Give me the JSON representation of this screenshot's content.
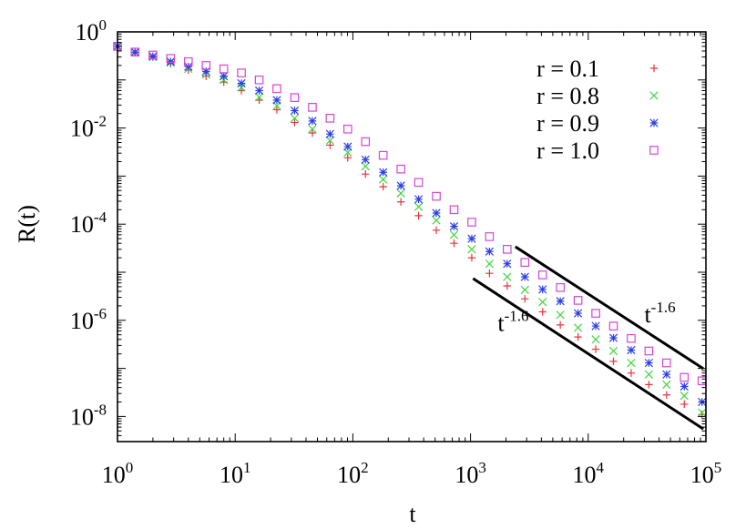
{
  "chart_data": {
    "type": "scatter",
    "xscale": "log",
    "yscale": "log",
    "xlim": [
      1,
      100000
    ],
    "ylim": [
      3e-09,
      1
    ],
    "xlabel": "t",
    "ylabel": "R(t)",
    "grid": false,
    "legend_position": "top-right",
    "x_ticks": [
      {
        "value": 1,
        "base": "10",
        "exp": "0"
      },
      {
        "value": 10,
        "base": "10",
        "exp": "1"
      },
      {
        "value": 100,
        "base": "10",
        "exp": "2"
      },
      {
        "value": 1000,
        "base": "10",
        "exp": "3"
      },
      {
        "value": 10000,
        "base": "10",
        "exp": "4"
      },
      {
        "value": 100000,
        "base": "10",
        "exp": "5"
      }
    ],
    "y_ticks": [
      {
        "value": 1,
        "base": "10",
        "exp": "0"
      },
      {
        "value": 0.01,
        "base": "10",
        "exp": "-2"
      },
      {
        "value": 0.0001,
        "base": "10",
        "exp": "-4"
      },
      {
        "value": 1e-06,
        "base": "10",
        "exp": "-6"
      },
      {
        "value": 1e-08,
        "base": "10",
        "exp": "-8"
      }
    ],
    "x": [
      1,
      1.41,
      2,
      2.83,
      4,
      5.66,
      8,
      11.3,
      16,
      22.6,
      32,
      45.3,
      64,
      90.5,
      128,
      181,
      256,
      362,
      512,
      724,
      1024,
      1448,
      2048,
      2896,
      4096,
      5793,
      8192,
      11585,
      16384,
      23170,
      32768,
      46341,
      65536,
      92682
    ],
    "series": [
      {
        "name": "r = 0.1",
        "marker": "plus",
        "color": "#e8343a",
        "values": [
          0.5,
          0.37,
          0.3,
          0.22,
          0.16,
          0.12,
          0.09,
          0.06,
          0.038,
          0.024,
          0.013,
          0.0079,
          0.0044,
          0.0024,
          0.0011,
          0.0006,
          0.00029,
          0.00015,
          7.5e-05,
          4e-05,
          2e-05,
          9.5e-06,
          5.2e-06,
          2.8e-06,
          1.5e-06,
          8e-07,
          4.5e-07,
          2.5e-07,
          1.4e-07,
          8e-08,
          4.6e-08,
          2.8e-08,
          1.8e-08,
          1.1e-08
        ]
      },
      {
        "name": "r = 0.8",
        "marker": "cross",
        "color": "#3dd63d",
        "values": [
          0.5,
          0.37,
          0.3,
          0.23,
          0.17,
          0.13,
          0.1,
          0.07,
          0.044,
          0.029,
          0.016,
          0.0095,
          0.0055,
          0.0031,
          0.0016,
          0.00085,
          0.00044,
          0.00023,
          0.00012,
          6e-05,
          3e-05,
          1.5e-05,
          8e-06,
          4.3e-06,
          2.4e-06,
          1.3e-06,
          7e-07,
          4e-07,
          2.3e-07,
          1.3e-07,
          7.5e-08,
          4.6e-08,
          2.7e-08,
          1.2e-08
        ]
      },
      {
        "name": "r = 0.9",
        "marker": "star",
        "color": "#2c3ee8",
        "values": [
          0.5,
          0.38,
          0.31,
          0.24,
          0.19,
          0.15,
          0.12,
          0.085,
          0.06,
          0.038,
          0.023,
          0.014,
          0.0075,
          0.0041,
          0.0022,
          0.0012,
          0.00063,
          0.00033,
          0.00017,
          9e-05,
          5e-05,
          2.7e-05,
          1.5e-05,
          8e-06,
          4.4e-06,
          2.5e-06,
          1.4e-06,
          7.6e-07,
          4.3e-07,
          2.4e-07,
          1.3e-07,
          7.5e-08,
          4.2e-08,
          2e-08
        ]
      },
      {
        "name": "r = 1.0",
        "marker": "square",
        "color": "#d545d5",
        "values": [
          0.5,
          0.38,
          0.33,
          0.28,
          0.24,
          0.2,
          0.17,
          0.14,
          0.1,
          0.066,
          0.043,
          0.027,
          0.016,
          0.0095,
          0.0052,
          0.0027,
          0.0014,
          0.00074,
          0.00038,
          0.0002,
          0.00011,
          5.5e-05,
          3e-05,
          1.6e-05,
          8.8e-06,
          4.8e-06,
          2.6e-06,
          1.4e-06,
          7.6e-07,
          4.2e-07,
          2.3e-07,
          1.3e-07,
          6.5e-08,
          5.5e-08
        ]
      }
    ],
    "reference_lines": [
      {
        "label_base": "t",
        "label_exp": "-1.6",
        "x": [
          2400,
          95000
        ],
        "y": [
          3.4e-05,
          9.9e-08
        ],
        "label_anchor": [
          30000,
          9e-07
        ]
      },
      {
        "label_base": "t",
        "label_exp": "-1.6",
        "x": [
          1050,
          95000
        ],
        "y": [
          7.4e-06,
          5.5e-09
        ],
        "label_anchor": [
          1700,
          6e-07
        ]
      }
    ]
  }
}
